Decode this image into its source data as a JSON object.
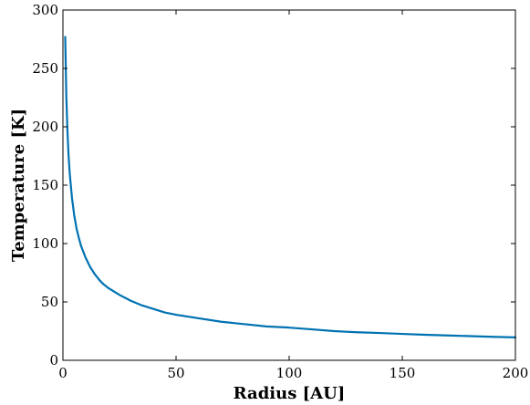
{
  "chart_data": {
    "type": "line",
    "xlabel": "Radius [AU]",
    "ylabel": "Temperature [K]",
    "xlim": [
      0,
      200
    ],
    "ylim": [
      0,
      300
    ],
    "xticks": [
      0,
      50,
      100,
      150,
      200
    ],
    "yticks": [
      0,
      50,
      100,
      150,
      200,
      250,
      300
    ],
    "grid": false,
    "line_color": "#0072b2",
    "series": [
      {
        "x": [
          1,
          1.5,
          2,
          2.5,
          3,
          4,
          5,
          6,
          7,
          8,
          10,
          12,
          14,
          16,
          18,
          20,
          25,
          30,
          35,
          40,
          45,
          50,
          60,
          70,
          80,
          90,
          100,
          110,
          120,
          130,
          140,
          150,
          160,
          170,
          180,
          190,
          200
        ],
        "y": [
          277,
          226,
          196,
          175,
          160,
          139,
          124,
          113,
          105,
          98,
          88,
          80,
          74,
          69,
          65,
          62,
          56,
          51,
          47,
          44,
          41,
          39,
          36,
          33,
          31,
          29,
          28,
          26.5,
          25,
          24,
          23.4,
          22.6,
          21.9,
          21.3,
          20.7,
          20.1,
          19.6
        ]
      }
    ]
  }
}
